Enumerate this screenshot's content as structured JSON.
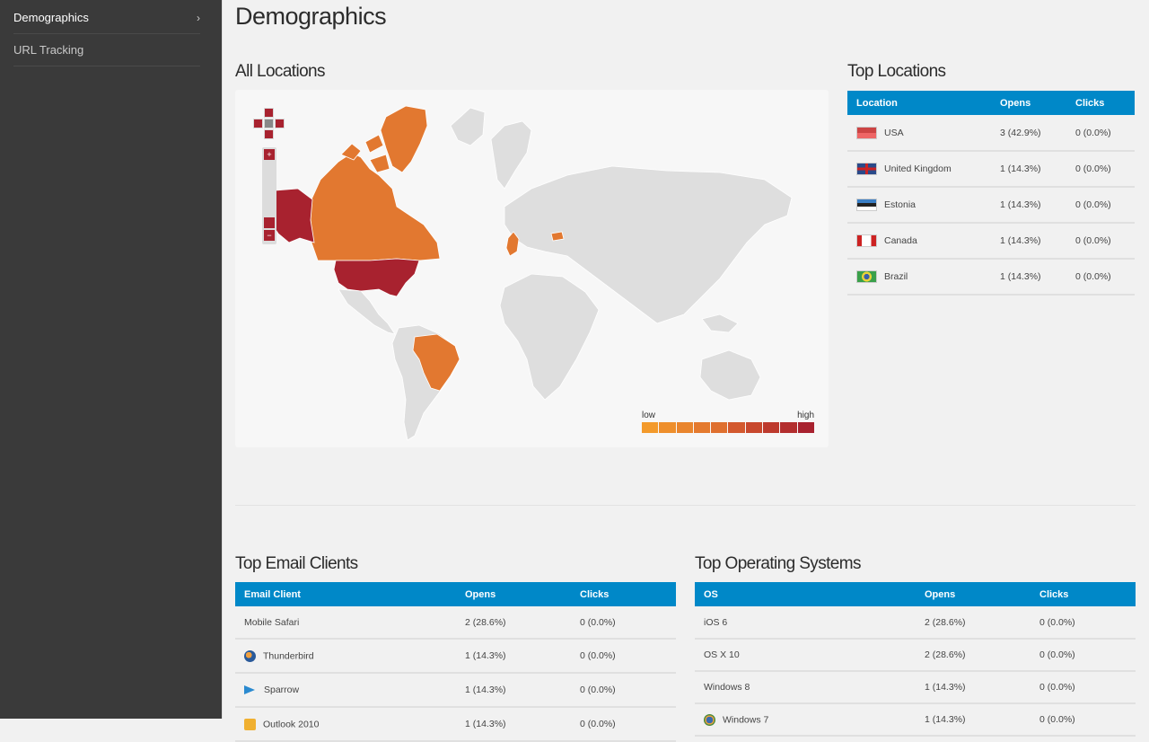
{
  "sidebar": {
    "items": [
      {
        "label": "Demographics",
        "active": true,
        "chevron": "›"
      },
      {
        "label": "URL Tracking",
        "active": false
      }
    ]
  },
  "page": {
    "title": "Demographics"
  },
  "all_locations": {
    "title": "All Locations",
    "map": {
      "legend_low": "low",
      "legend_high": "high",
      "legend_colors": [
        "#f39a2b",
        "#ee8f2c",
        "#e9852d",
        "#e47a2e",
        "#df702f",
        "#d3592e",
        "#c8482d",
        "#bd3a2d",
        "#b32e2e",
        "#a8222f"
      ],
      "highlighted_countries": [
        {
          "name": "USA",
          "color": "#a8222f"
        },
        {
          "name": "Canada",
          "color": "#e27830"
        },
        {
          "name": "Greenland",
          "color": "#e27830"
        },
        {
          "name": "United Kingdom",
          "color": "#e27830"
        },
        {
          "name": "Estonia",
          "color": "#e27830"
        },
        {
          "name": "Brazil",
          "color": "#e27830"
        }
      ],
      "base_color": "#dedede"
    }
  },
  "top_locations": {
    "title": "Top Locations",
    "columns": [
      "Location",
      "Opens",
      "Clicks"
    ],
    "rows": [
      {
        "flag": "us",
        "location": "USA",
        "opens": "3 (42.9%)",
        "clicks": "0 (0.0%)"
      },
      {
        "flag": "gb",
        "location": "United Kingdom",
        "opens": "1 (14.3%)",
        "clicks": "0 (0.0%)"
      },
      {
        "flag": "ee",
        "location": "Estonia",
        "opens": "1 (14.3%)",
        "clicks": "0 (0.0%)"
      },
      {
        "flag": "ca",
        "location": "Canada",
        "opens": "1 (14.3%)",
        "clicks": "0 (0.0%)"
      },
      {
        "flag": "br",
        "location": "Brazil",
        "opens": "1 (14.3%)",
        "clicks": "0 (0.0%)"
      }
    ]
  },
  "top_email_clients": {
    "title": "Top Email Clients",
    "columns": [
      "Email Client",
      "Opens",
      "Clicks"
    ],
    "rows": [
      {
        "icon": "none",
        "client": "Mobile Safari",
        "opens": "2 (28.6%)",
        "clicks": "0 (0.0%)"
      },
      {
        "icon": "thunderbird-icon",
        "client": "Thunderbird",
        "opens": "1 (14.3%)",
        "clicks": "0 (0.0%)"
      },
      {
        "icon": "sparrow-icon",
        "client": "Sparrow",
        "opens": "1 (14.3%)",
        "clicks": "0 (0.0%)"
      },
      {
        "icon": "outlook-icon",
        "client": "Outlook 2010",
        "opens": "1 (14.3%)",
        "clicks": "0 (0.0%)"
      }
    ]
  },
  "top_operating_systems": {
    "title": "Top Operating Systems",
    "columns": [
      "OS",
      "Opens",
      "Clicks"
    ],
    "rows": [
      {
        "icon": "none",
        "os": "iOS 6",
        "opens": "2 (28.6%)",
        "clicks": "0 (0.0%)"
      },
      {
        "icon": "none",
        "os": "OS X 10",
        "opens": "2 (28.6%)",
        "clicks": "0 (0.0%)"
      },
      {
        "icon": "none",
        "os": "Windows 8",
        "opens": "1 (14.3%)",
        "clicks": "0 (0.0%)"
      },
      {
        "icon": "windows-icon",
        "os": "Windows 7",
        "opens": "1 (14.3%)",
        "clicks": "0 (0.0%)"
      }
    ]
  }
}
